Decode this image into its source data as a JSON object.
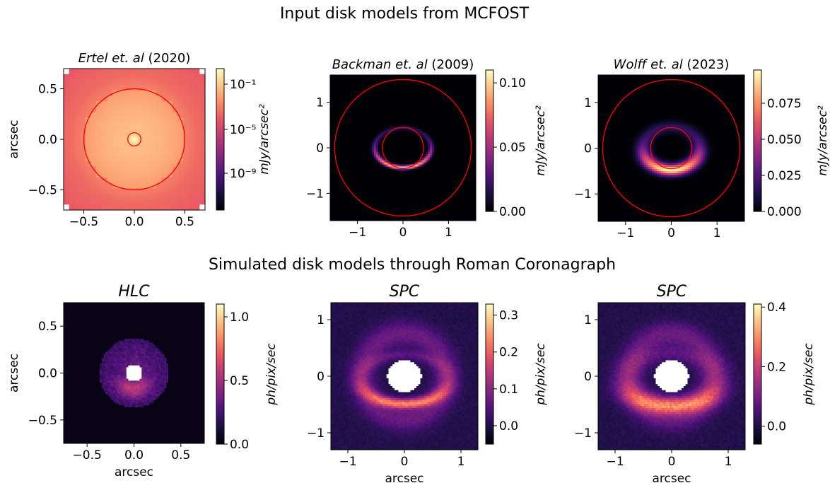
{
  "figure": {
    "top_title": "Input disk models from MCFOST",
    "bottom_title": "Simulated disk models through Roman Coronagraph"
  },
  "colormap": {
    "name": "magma",
    "stops": [
      "#000004",
      "#1c1044",
      "#4f127b",
      "#812581",
      "#b5367a",
      "#e55064",
      "#fb8761",
      "#fec287",
      "#fcfdbf"
    ]
  },
  "chart_data": [
    {
      "type": "heatmap",
      "panel": "input-ertel",
      "title_italic": "Ertel et. al",
      "title_year": " (2020)",
      "xlabel": "",
      "ylabel": "arcsec",
      "xlim": [
        -0.7,
        0.7
      ],
      "ylim": [
        -0.7,
        0.7
      ],
      "xticks": [
        -0.5,
        0.0,
        0.5
      ],
      "yticks": [
        -0.5,
        0.0,
        0.5
      ],
      "tick_labels": {
        "x": [
          "−0.5",
          "0.0",
          "0.5"
        ],
        "y": [
          "−0.5",
          "0.0",
          "0.5"
        ]
      },
      "image": {
        "model": "radial",
        "description": "smooth radially decreasing brightness, peak at centre, white corners",
        "colorscale": "log"
      },
      "rings": [
        {
          "radius": 0.065,
          "color": "#ff0000"
        },
        {
          "radius": 0.5,
          "color": "#ff0000"
        }
      ],
      "colorbar": {
        "label": "mJy/arcsec²",
        "ticks": [
          "10⁻¹",
          "10⁻⁵",
          "10⁻⁹"
        ],
        "tick_fractions": [
          0.89,
          0.57,
          0.26
        ]
      }
    },
    {
      "type": "heatmap",
      "panel": "input-backman",
      "title_italic": "Backman et. al",
      "title_year": " (2009)",
      "xlabel": "",
      "ylabel": "",
      "xlim": [
        -1.6,
        1.6
      ],
      "ylim": [
        -1.6,
        1.6
      ],
      "xticks": [
        -1,
        0,
        1
      ],
      "yticks": [
        -1,
        0,
        1
      ],
      "tick_labels": {
        "x": [
          "−1",
          "0",
          "1"
        ],
        "y": [
          "−1",
          "0",
          "1"
        ]
      },
      "image": {
        "model": "ring",
        "ring_radius": 0.62,
        "ring_width": 0.06,
        "inclination_ratio": 0.7,
        "front_side": "south",
        "peak_brightness": 0.11
      },
      "rings": [
        {
          "radius": 0.45,
          "color": "#ff0000"
        },
        {
          "radius": 1.5,
          "color": "#ff0000"
        }
      ],
      "colorbar": {
        "label": "mJy/arcsec²",
        "range": [
          0.0,
          0.11
        ],
        "ticks": [
          "0.00",
          "0.05",
          "0.10"
        ],
        "tick_values": [
          0.0,
          0.05,
          0.1
        ]
      }
    },
    {
      "type": "heatmap",
      "panel": "input-wolff",
      "title_italic": "Wolff et. al",
      "title_year": " (2023)",
      "xlabel": "",
      "ylabel": "",
      "xlim": [
        -1.6,
        1.6
      ],
      "ylim": [
        -1.6,
        1.6
      ],
      "xticks": [
        -1,
        0,
        1
      ],
      "yticks": [
        -1,
        0,
        1
      ],
      "tick_labels": {
        "x": [
          "−1",
          "0",
          "1"
        ],
        "y": [
          "−1",
          "0",
          "1"
        ]
      },
      "image": {
        "model": "ring",
        "ring_radius": 0.62,
        "ring_width": 0.16,
        "inclination_ratio": 0.75,
        "front_side": "south",
        "peak_brightness": 0.098
      },
      "rings": [
        {
          "radius": 0.45,
          "color": "#ff0000"
        },
        {
          "radius": 1.5,
          "color": "#ff0000"
        }
      ],
      "colorbar": {
        "label": "mJy/arcsec²",
        "range": [
          0.0,
          0.098
        ],
        "ticks": [
          "0.000",
          "0.025",
          "0.050",
          "0.075"
        ],
        "tick_values": [
          0.0,
          0.025,
          0.05,
          0.075
        ]
      }
    },
    {
      "type": "heatmap",
      "panel": "sim-hlc",
      "title_italic": "HLC",
      "title_year": "",
      "xlabel": "arcsec",
      "ylabel": "arcsec",
      "xlim": [
        -0.75,
        0.75
      ],
      "ylim": [
        -0.75,
        0.75
      ],
      "xticks": [
        -0.5,
        0.0,
        0.5
      ],
      "yticks": [
        -0.5,
        0.0,
        0.5
      ],
      "tick_labels": {
        "x": [
          "−0.5",
          "0.0",
          "0.5"
        ],
        "y": [
          "−0.5",
          "0.0",
          "0.5"
        ]
      },
      "image": {
        "model": "masked-disk",
        "mask_radius": 0.09,
        "outer_radius": 0.37,
        "bright_arc": "south",
        "peak_brightness": 1.1
      },
      "colorbar": {
        "label": "ph/pix/sec",
        "range": [
          0.0,
          1.1
        ],
        "ticks": [
          "0.0",
          "0.5",
          "1.0"
        ],
        "tick_values": [
          0.0,
          0.5,
          1.0
        ]
      }
    },
    {
      "type": "heatmap",
      "panel": "sim-spc-1",
      "title_italic": "SPC",
      "title_year": "",
      "xlabel": "arcsec",
      "ylabel": "",
      "xlim": [
        -1.3,
        1.3
      ],
      "ylim": [
        -1.3,
        1.3
      ],
      "xticks": [
        -1,
        0,
        1
      ],
      "yticks": [
        -1,
        0,
        1
      ],
      "tick_labels": {
        "x": [
          "−1",
          "0",
          "1"
        ],
        "y": [
          "−1",
          "0",
          "1"
        ]
      },
      "image": {
        "model": "noisy-ring",
        "mask_radius": 0.3,
        "ring_radius": 0.62,
        "front_side": "south",
        "peak_brightness": 0.32
      },
      "colorbar": {
        "label": "ph/pix/sec",
        "range": [
          -0.05,
          0.33
        ],
        "ticks": [
          "0.0",
          "0.1",
          "0.2",
          "0.3"
        ],
        "tick_values": [
          0.0,
          0.1,
          0.2,
          0.3
        ]
      }
    },
    {
      "type": "heatmap",
      "panel": "sim-spc-2",
      "title_italic": "SPC",
      "title_year": "",
      "xlabel": "arcsec",
      "ylabel": "",
      "xlim": [
        -1.3,
        1.3
      ],
      "ylim": [
        -1.3,
        1.3
      ],
      "xticks": [
        -1,
        0,
        1
      ],
      "yticks": [
        -1,
        0,
        1
      ],
      "tick_labels": {
        "x": [
          "−1",
          "0",
          "1"
        ],
        "y": [
          "−1",
          "0",
          "1"
        ]
      },
      "image": {
        "model": "noisy-wide-ring",
        "mask_radius": 0.3,
        "ring_radius": 0.62,
        "front_side": "south",
        "peak_brightness": 0.4
      },
      "colorbar": {
        "label": "ph/pix/sec",
        "range": [
          -0.06,
          0.41
        ],
        "ticks": [
          "0.0",
          "0.2",
          "0.4"
        ],
        "tick_values": [
          0.0,
          0.2,
          0.4
        ]
      }
    }
  ]
}
